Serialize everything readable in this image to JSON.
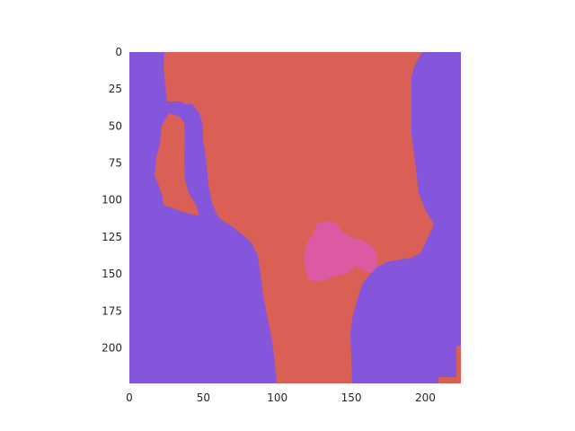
{
  "image": {
    "type": "segmentation-mask",
    "width": 224,
    "height": 224,
    "colors": {
      "purple": "#8456DC",
      "red": "#DA5F54",
      "pink": "#DB5AA1"
    }
  },
  "axes": {
    "x_ticks": [
      0,
      50,
      100,
      150,
      200
    ],
    "y_ticks": [
      0,
      25,
      50,
      75,
      100,
      125,
      150,
      175,
      200
    ],
    "xlim": [
      0,
      224
    ],
    "ylim": [
      224,
      0
    ]
  }
}
